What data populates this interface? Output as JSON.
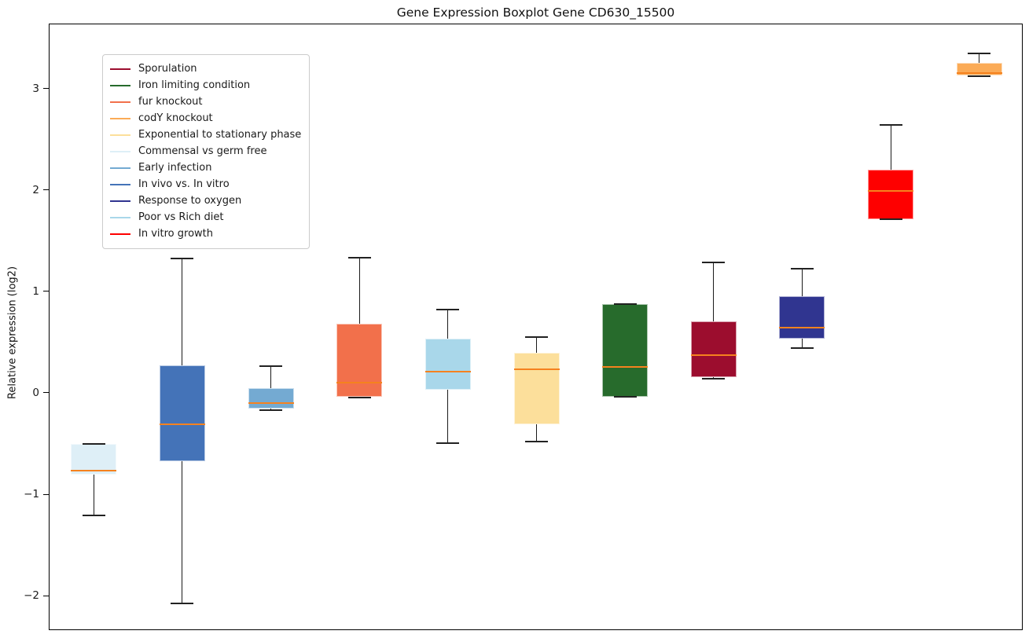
{
  "page": {
    "title": "Gene Expression Boxplot Gene CD630_15500"
  },
  "y_axis": {
    "label": "Relative expression (log2)",
    "ticks": [
      {
        "label": "3",
        "value": 3
      },
      {
        "label": "2",
        "value": 2
      },
      {
        "label": "1",
        "value": 1
      },
      {
        "label": "0",
        "value": 0
      },
      {
        "label": "−1",
        "value": -1
      },
      {
        "label": "−2",
        "value": -2
      }
    ]
  },
  "legend": {
    "items": [
      {
        "label": "Sporulation",
        "color": "#9c0d2e"
      },
      {
        "label": "Iron limiting condition",
        "color": "#276b2c"
      },
      {
        "label": "fur knockout",
        "color": "#f2704b"
      },
      {
        "label": "codY knockout",
        "color": "#fbab57"
      },
      {
        "label": "Exponential to stationary phase",
        "color": "#fcdf9b"
      },
      {
        "label": "Commensal vs germ free",
        "color": "#deeff7"
      },
      {
        "label": "Early infection",
        "color": "#74aad2"
      },
      {
        "label": "In vivo vs. In vitro",
        "color": "#4473b8"
      },
      {
        "label": "Response to oxygen",
        "color": "#303590"
      },
      {
        "label": "Poor vs Rich diet",
        "color": "#a9d7ea"
      },
      {
        "label": "In vitro growth",
        "color": "#fe0000"
      }
    ]
  },
  "chart_data": {
    "type": "boxplot",
    "title": "Gene Expression Boxplot Gene CD630_15500",
    "ylabel": "Relative expression (log2)",
    "ylim": [
      -2.34,
      3.64
    ],
    "yticks": [
      3,
      2,
      1,
      0,
      -1,
      -2
    ],
    "grid": false,
    "legend_position": "upper left",
    "x_axis_labels": "none",
    "categories": [
      "Commensal vs germ free",
      "In vivo vs. In vitro",
      "Early infection",
      "fur knockout",
      "Poor vs Rich diet",
      "Exponential to stationary phase",
      "Iron limiting condition",
      "Sporulation",
      "Response to oxygen",
      "In vitro growth",
      "codY knockout"
    ],
    "series": [
      {
        "name": "Commensal vs germ free",
        "color": "#deeff7",
        "whisker_low": -1.2,
        "q1": -0.8,
        "median": -0.76,
        "q3": -0.5,
        "whisker_high": -0.5
      },
      {
        "name": "In vivo vs. In vitro",
        "color": "#4473b8",
        "whisker_low": -2.07,
        "q1": -0.67,
        "median": -0.3,
        "q3": 0.28,
        "whisker_high": 1.33
      },
      {
        "name": "Early infection",
        "color": "#74aad2",
        "whisker_low": -0.16,
        "q1": -0.15,
        "median": -0.09,
        "q3": 0.05,
        "whisker_high": 0.27
      },
      {
        "name": "fur knockout",
        "color": "#f2704b",
        "whisker_low": -0.04,
        "q1": -0.03,
        "median": 0.11,
        "q3": 0.69,
        "whisker_high": 1.34
      },
      {
        "name": "Poor vs Rich diet",
        "color": "#a9d7ea",
        "whisker_low": -0.49,
        "q1": 0.04,
        "median": 0.22,
        "q3": 0.54,
        "whisker_high": 0.83
      },
      {
        "name": "Exponential to stationary phase",
        "color": "#fcdf9b",
        "whisker_low": -0.47,
        "q1": -0.3,
        "median": 0.24,
        "q3": 0.4,
        "whisker_high": 0.56
      },
      {
        "name": "Iron limiting condition",
        "color": "#276b2c",
        "whisker_low": -0.03,
        "q1": -0.03,
        "median": 0.26,
        "q3": 0.88,
        "whisker_high": 0.88
      },
      {
        "name": "Sporulation",
        "color": "#9c0d2e",
        "whisker_low": 0.15,
        "q1": 0.16,
        "median": 0.38,
        "q3": 0.71,
        "whisker_high": 1.29
      },
      {
        "name": "Response to oxygen",
        "color": "#303590",
        "whisker_low": 0.45,
        "q1": 0.54,
        "median": 0.65,
        "q3": 0.96,
        "whisker_high": 1.23
      },
      {
        "name": "In vitro growth",
        "color": "#fe0000",
        "whisker_low": 1.72,
        "q1": 1.72,
        "median": 2.0,
        "q3": 2.21,
        "whisker_high": 2.65
      },
      {
        "name": "codY knockout",
        "color": "#fbab57",
        "whisker_low": 3.13,
        "q1": 3.14,
        "median": 3.16,
        "q3": 3.26,
        "whisker_high": 3.35
      }
    ],
    "style": {
      "median_color": "#f5821f",
      "whisker_color": "#1a1a1a",
      "cap_color": "#222222"
    }
  }
}
